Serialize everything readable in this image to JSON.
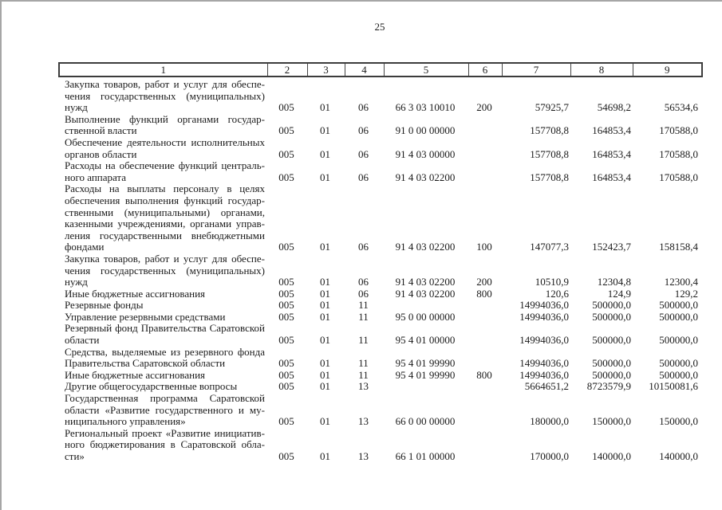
{
  "page": {
    "number": "25"
  },
  "colors": {
    "page_bg": "#ffffff",
    "frame_border": "#a6a6a6",
    "table_border": "#3c3c3c",
    "text": "#1b1b1b"
  },
  "table": {
    "header": [
      "1",
      "2",
      "3",
      "4",
      "5",
      "6",
      "7",
      "8",
      "9"
    ],
    "rows": [
      {
        "name_lines": [
          "Закупка товаров, работ и услуг для обеспе-",
          "чения государственных (муниципальных)",
          "нужд"
        ],
        "cols": [
          "005",
          "01",
          "06",
          "66 3 03 10010",
          "200",
          "57925,7",
          "54698,2",
          "56534,6"
        ]
      },
      {
        "name_lines": [
          "Выполнение функций органами государ-",
          "ственной власти"
        ],
        "cols": [
          "005",
          "01",
          "06",
          "91 0 00 00000",
          "",
          "157708,8",
          "164853,4",
          "170588,0"
        ]
      },
      {
        "name_lines": [
          "Обеспечение деятельности исполнительных",
          "органов области"
        ],
        "cols": [
          "005",
          "01",
          "06",
          "91 4 03 00000",
          "",
          "157708,8",
          "164853,4",
          "170588,0"
        ]
      },
      {
        "name_lines": [
          "Расходы на обеспечение функций централь-",
          "ного аппарата"
        ],
        "cols": [
          "005",
          "01",
          "06",
          "91 4 03 02200",
          "",
          "157708,8",
          "164853,4",
          "170588,0"
        ]
      },
      {
        "name_lines": [
          "Расходы на выплаты персоналу в целях",
          "обеспечения выполнения функций государ-",
          "ственными (муниципальными) органами,",
          "казенными учреждениями, органами управ-",
          "ления государственными внебюджетными",
          "фондами"
        ],
        "cols": [
          "005",
          "01",
          "06",
          "91 4 03 02200",
          "100",
          "147077,3",
          "152423,7",
          "158158,4"
        ]
      },
      {
        "name_lines": [
          "Закупка товаров, работ и услуг для обеспе-",
          "чения государственных (муниципальных)",
          "нужд"
        ],
        "cols": [
          "005",
          "01",
          "06",
          "91 4 03 02200",
          "200",
          "10510,9",
          "12304,8",
          "12300,4"
        ]
      },
      {
        "name_lines": [
          "Иные бюджетные ассигнования"
        ],
        "cols": [
          "005",
          "01",
          "06",
          "91 4 03 02200",
          "800",
          "120,6",
          "124,9",
          "129,2"
        ]
      },
      {
        "name_lines": [
          "Резервные фонды"
        ],
        "cols": [
          "005",
          "01",
          "11",
          "",
          "",
          "14994036,0",
          "500000,0",
          "500000,0"
        ]
      },
      {
        "name_lines": [
          "Управление резервными средствами"
        ],
        "cols": [
          "005",
          "01",
          "11",
          "95 0 00 00000",
          "",
          "14994036,0",
          "500000,0",
          "500000,0"
        ]
      },
      {
        "name_lines": [
          "Резервный фонд Правительства Саратовской",
          "области"
        ],
        "cols": [
          "005",
          "01",
          "11",
          "95 4 01 00000",
          "",
          "14994036,0",
          "500000,0",
          "500000,0"
        ]
      },
      {
        "name_lines": [
          "Средства, выделяемые из резервного фонда",
          "Правительства Саратовской области"
        ],
        "cols": [
          "005",
          "01",
          "11",
          "95 4 01 99990",
          "",
          "14994036,0",
          "500000,0",
          "500000,0"
        ]
      },
      {
        "name_lines": [
          "Иные бюджетные ассигнования"
        ],
        "cols": [
          "005",
          "01",
          "11",
          "95 4 01 99990",
          "800",
          "14994036,0",
          "500000,0",
          "500000,0"
        ]
      },
      {
        "name_lines": [
          "Другие общегосударственные вопросы"
        ],
        "cols": [
          "005",
          "01",
          "13",
          "",
          "",
          "5664651,2",
          "8723579,9",
          "10150081,6"
        ]
      },
      {
        "name_lines": [
          "Государственная программа Саратовской",
          "области «Развитие государственного и му-",
          "ниципального управления»"
        ],
        "cols": [
          "005",
          "01",
          "13",
          "66 0 00 00000",
          "",
          "180000,0",
          "150000,0",
          "150000,0"
        ]
      },
      {
        "name_lines": [
          "Региональный проект «Развитие инициатив-",
          "ного бюджетирования в Саратовской обла-",
          "сти»"
        ],
        "cols": [
          "005",
          "01",
          "13",
          "66 1 01 00000",
          "",
          "170000,0",
          "140000,0",
          "140000,0"
        ]
      }
    ]
  }
}
